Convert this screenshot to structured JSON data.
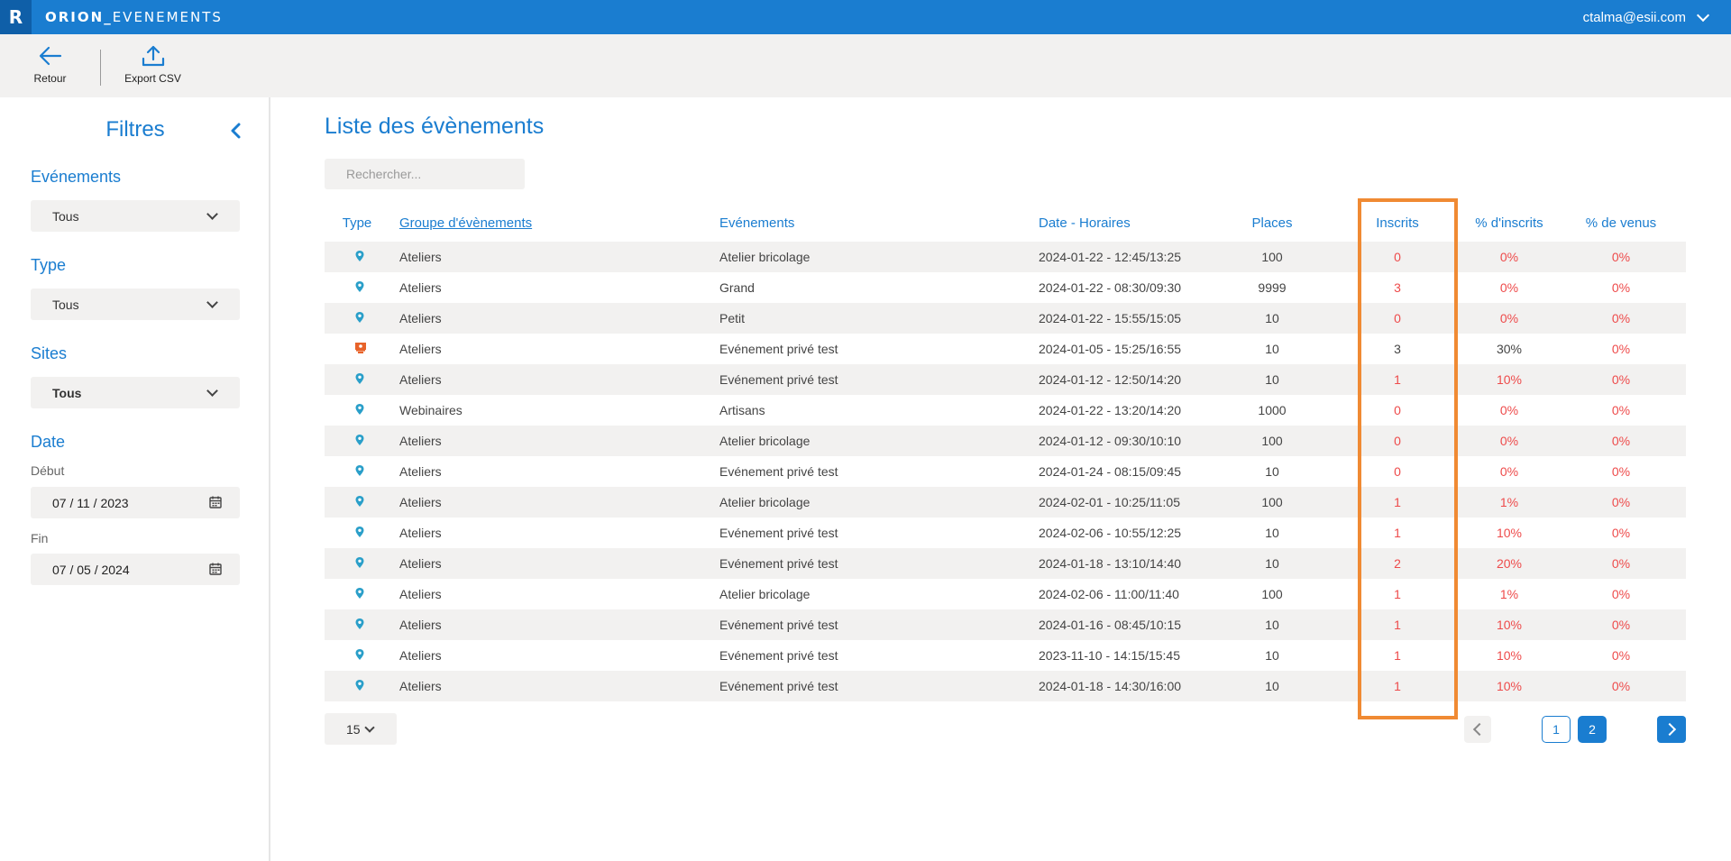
{
  "app": {
    "logo_letter": "R",
    "name_bold": "ORION_",
    "name_rest": "EVENEMENTS",
    "user_email": "ctalma@esii.com",
    "brand_color": "#1a7dd0"
  },
  "toolbar": {
    "back_label": "Retour",
    "export_label": "Export CSV"
  },
  "sidebar": {
    "title": "Filtres",
    "evenements": {
      "label": "Evénements",
      "value": "Tous"
    },
    "type": {
      "label": "Type",
      "value": "Tous"
    },
    "sites": {
      "label": "Sites",
      "value": "Tous"
    },
    "date": {
      "label": "Date",
      "debut_label": "Début",
      "debut_value": "07 / 11 / 2023",
      "fin_label": "Fin",
      "fin_value": "07 / 05 / 2024"
    }
  },
  "main": {
    "title": "Liste des évènements",
    "search_placeholder": "Rechercher...",
    "columns": {
      "type": "Type",
      "groupe": "Groupe d'évènements",
      "evenements": "Evénements",
      "date": "Date - Horaires",
      "places": "Places",
      "inscrits": "Inscrits",
      "pct_inscrits": "% d'inscrits",
      "pct_venus": "% de venus"
    },
    "rows": [
      {
        "type_icon": "location-pin-icon",
        "groupe": "Ateliers",
        "evenement": "Atelier bricolage",
        "date": "2024-01-22 - 12:45/13:25",
        "places": "100",
        "inscrits": "0",
        "pct_inscrits": "0%",
        "pct_venus": "0%",
        "status": "red"
      },
      {
        "type_icon": "location-pin-icon",
        "groupe": "Ateliers",
        "evenement": "Grand",
        "date": "2024-01-22 - 08:30/09:30",
        "places": "9999",
        "inscrits": "3",
        "pct_inscrits": "0%",
        "pct_venus": "0%",
        "status": "red"
      },
      {
        "type_icon": "location-pin-icon",
        "groupe": "Ateliers",
        "evenement": "Petit",
        "date": "2024-01-22 - 15:55/15:05",
        "places": "10",
        "inscrits": "0",
        "pct_inscrits": "0%",
        "pct_venus": "0%",
        "status": "red"
      },
      {
        "type_icon": "presenter-icon",
        "groupe": "Ateliers",
        "evenement": "Evénement privé test",
        "date": "2024-01-05 - 15:25/16:55",
        "places": "10",
        "inscrits": "3",
        "pct_inscrits": "30%",
        "pct_venus": "0%",
        "status": "dark"
      },
      {
        "type_icon": "location-pin-icon",
        "groupe": "Ateliers",
        "evenement": "Evénement privé test",
        "date": "2024-01-12 - 12:50/14:20",
        "places": "10",
        "inscrits": "1",
        "pct_inscrits": "10%",
        "pct_venus": "0%",
        "status": "red"
      },
      {
        "type_icon": "location-pin-icon",
        "groupe": "Webinaires",
        "evenement": "Artisans",
        "date": "2024-01-22 - 13:20/14:20",
        "places": "1000",
        "inscrits": "0",
        "pct_inscrits": "0%",
        "pct_venus": "0%",
        "status": "red"
      },
      {
        "type_icon": "location-pin-icon",
        "groupe": "Ateliers",
        "evenement": "Atelier bricolage",
        "date": "2024-01-12 - 09:30/10:10",
        "places": "100",
        "inscrits": "0",
        "pct_inscrits": "0%",
        "pct_venus": "0%",
        "status": "red"
      },
      {
        "type_icon": "location-pin-icon",
        "groupe": "Ateliers",
        "evenement": "Evénement privé test",
        "date": "2024-01-24 - 08:15/09:45",
        "places": "10",
        "inscrits": "0",
        "pct_inscrits": "0%",
        "pct_venus": "0%",
        "status": "red"
      },
      {
        "type_icon": "location-pin-icon",
        "groupe": "Ateliers",
        "evenement": "Atelier bricolage",
        "date": "2024-02-01 - 10:25/11:05",
        "places": "100",
        "inscrits": "1",
        "pct_inscrits": "1%",
        "pct_venus": "0%",
        "status": "red"
      },
      {
        "type_icon": "location-pin-icon",
        "groupe": "Ateliers",
        "evenement": "Evénement privé test",
        "date": "2024-02-06 - 10:55/12:25",
        "places": "10",
        "inscrits": "1",
        "pct_inscrits": "10%",
        "pct_venus": "0%",
        "status": "red"
      },
      {
        "type_icon": "location-pin-icon",
        "groupe": "Ateliers",
        "evenement": "Evénement privé test",
        "date": "2024-01-18 - 13:10/14:40",
        "places": "10",
        "inscrits": "2",
        "pct_inscrits": "20%",
        "pct_venus": "0%",
        "status": "red"
      },
      {
        "type_icon": "location-pin-icon",
        "groupe": "Ateliers",
        "evenement": "Atelier bricolage",
        "date": "2024-02-06 - 11:00/11:40",
        "places": "100",
        "inscrits": "1",
        "pct_inscrits": "1%",
        "pct_venus": "0%",
        "status": "red"
      },
      {
        "type_icon": "location-pin-icon",
        "groupe": "Ateliers",
        "evenement": "Evénement privé test",
        "date": "2024-01-16 - 08:45/10:15",
        "places": "10",
        "inscrits": "1",
        "pct_inscrits": "10%",
        "pct_venus": "0%",
        "status": "red"
      },
      {
        "type_icon": "location-pin-icon",
        "groupe": "Ateliers",
        "evenement": "Evénement privé test",
        "date": "2023-11-10 - 14:15/15:45",
        "places": "10",
        "inscrits": "1",
        "pct_inscrits": "10%",
        "pct_venus": "0%",
        "status": "red"
      },
      {
        "type_icon": "location-pin-icon",
        "groupe": "Ateliers",
        "evenement": "Evénement privé test",
        "date": "2024-01-18 - 14:30/16:00",
        "places": "10",
        "inscrits": "1",
        "pct_inscrits": "10%",
        "pct_venus": "0%",
        "status": "red"
      }
    ]
  },
  "pagination": {
    "per_page": "15",
    "pages": [
      "1",
      "2"
    ],
    "current_page": "2"
  },
  "colors": {
    "accent": "#1a7dd0",
    "alert_red": "#ee4b4b",
    "highlight_orange": "#f08a33",
    "pin_teal": "#2a9fc9",
    "presenter_orange": "#e8632a"
  }
}
